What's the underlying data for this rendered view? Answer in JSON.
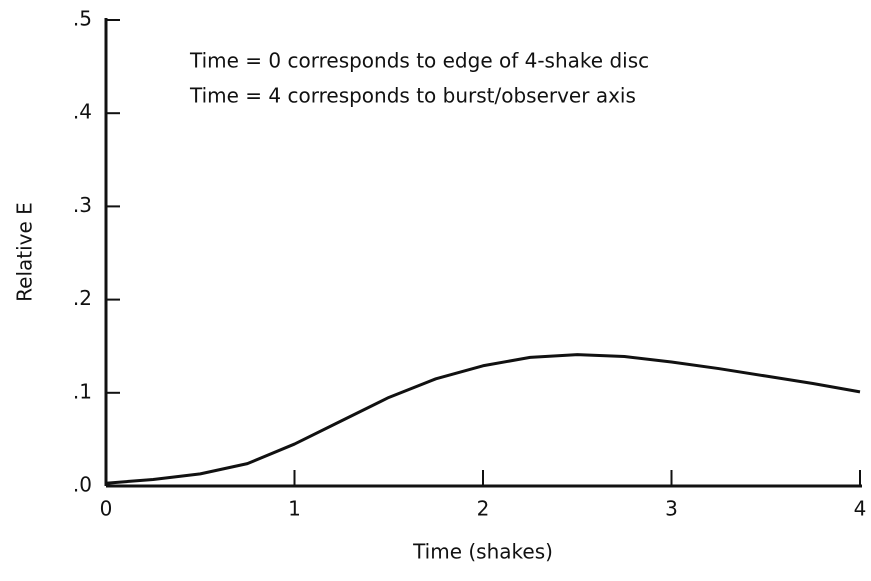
{
  "chart_data": {
    "type": "line",
    "annotations": [
      "Time = 0 corresponds to edge of 4-shake disc",
      "Time = 4 corresponds to burst/observer axis"
    ],
    "x_label": "Time  (shakes)",
    "y_label": "Relative E",
    "x": [
      0,
      0.25,
      0.5,
      0.75,
      1.0,
      1.25,
      1.5,
      1.75,
      2.0,
      2.25,
      2.5,
      2.75,
      3.0,
      3.25,
      3.5,
      3.75,
      4.0
    ],
    "series": [
      {
        "name": "Relative E",
        "color": "#111111",
        "values": [
          0.003,
          0.007,
          0.013,
          0.024,
          0.045,
          0.07,
          0.095,
          0.115,
          0.129,
          0.138,
          0.141,
          0.139,
          0.133,
          0.126,
          0.118,
          0.11,
          0.101
        ]
      }
    ],
    "xlim": [
      0,
      4
    ],
    "xticks": [
      0,
      1,
      2,
      3,
      4
    ],
    "ylim": [
      0,
      0.5
    ],
    "yticks": [
      {
        "value": 0,
        "label": ".0"
      },
      {
        "value": 0.1,
        "label": ".1"
      },
      {
        "value": 0.2,
        "label": ".2"
      },
      {
        "value": 0.3,
        "label": ".3"
      },
      {
        "value": 0.4,
        "label": ".4"
      },
      {
        "value": 0.5,
        "label": ".5"
      }
    ]
  }
}
